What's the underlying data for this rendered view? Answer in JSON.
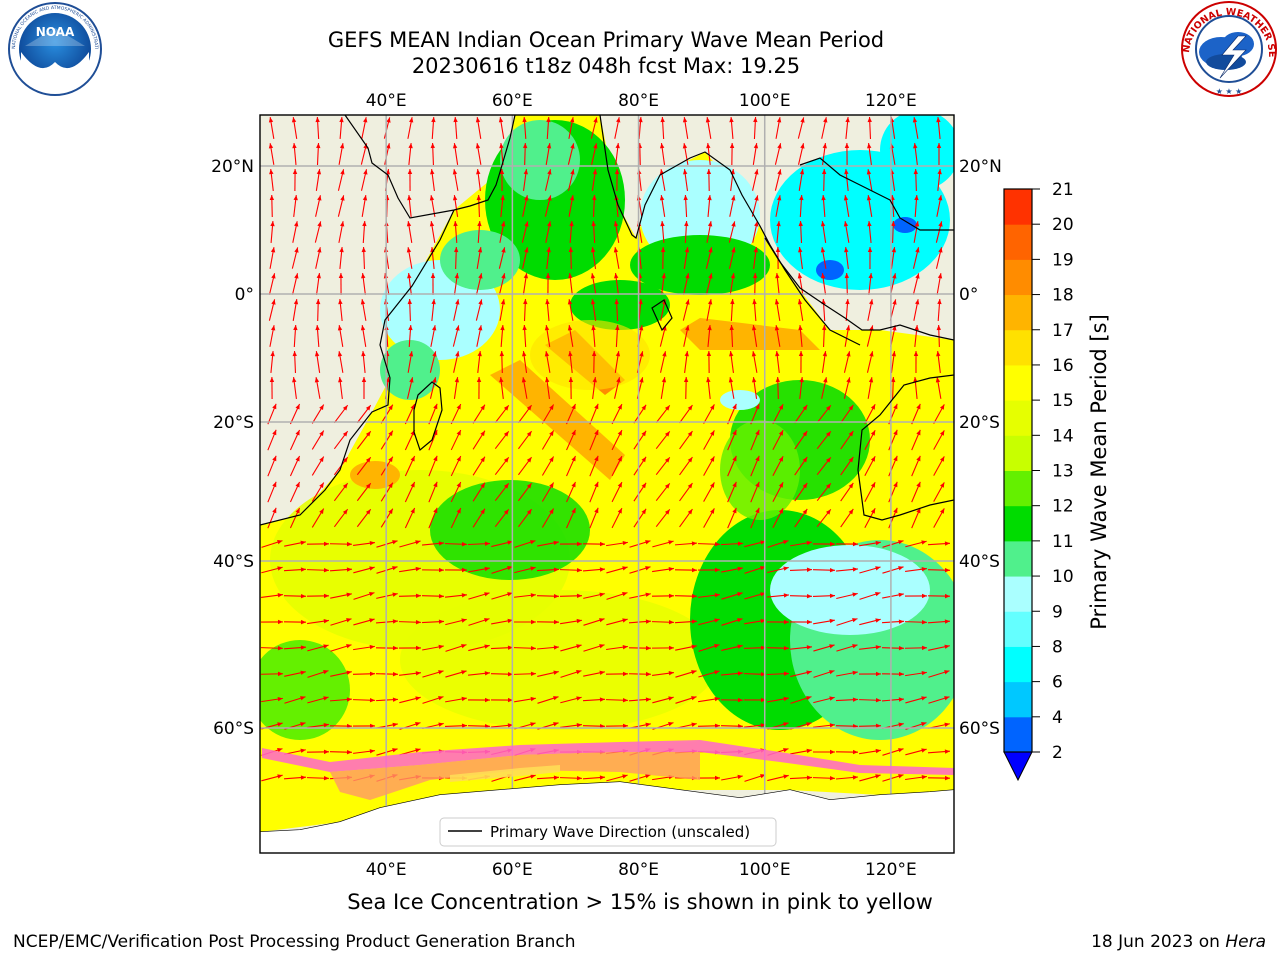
{
  "header": {
    "title_line1": "GEFS MEAN Indian Ocean Primary Wave Mean Period",
    "title_line2": "20230616 t18z 048h fcst   Max: 19.25"
  },
  "logos": {
    "left": "NOAA",
    "left_ring_text": "NATIONAL OCEANIC AND ATMOSPHERIC ADMINISTRATION · U.S. DEPARTMENT OF COMMERCE",
    "right_ring_text": "NATIONAL WEATHER SERVICE"
  },
  "map": {
    "lon_ticks": [
      "40°E",
      "60°E",
      "80°E",
      "100°E",
      "120°E"
    ],
    "lat_ticks": [
      "20°N",
      "0°",
      "20°S",
      "40°S",
      "60°S"
    ],
    "extent": {
      "lon_min": 20,
      "lon_max": 130,
      "lat_min": -72,
      "lat_max": 28
    },
    "legend_label": "Primary Wave Direction (unscaled)",
    "arrow_color": "#ff0000"
  },
  "colorbar": {
    "label": "Primary Wave Mean Period [s]",
    "ticks": [
      "2",
      "4",
      "6",
      "8",
      "9",
      "10",
      "11",
      "12",
      "13",
      "14",
      "15",
      "16",
      "17",
      "18",
      "19",
      "20",
      "21"
    ],
    "colors": [
      "#0064ff",
      "#00c8ff",
      "#00ffff",
      "#64ffff",
      "#aaffff",
      "#50f08c",
      "#00dc00",
      "#64f000",
      "#c8ff00",
      "#e6ff00",
      "#ffff00",
      "#ffe100",
      "#ffb400",
      "#ff8c00",
      "#ff6400",
      "#ff3200"
    ],
    "extend_color": "#0000ff"
  },
  "caption": "Sea Ice Concentration > 15% is shown in pink to yellow",
  "footer": {
    "left": "NCEP/EMC/Verification Post Processing Product Generation Branch",
    "right_date": "18 Jun 2023 on ",
    "right_host": "Hera"
  },
  "chart_data": {
    "type": "heatmap",
    "title": "GEFS MEAN Indian Ocean Primary Wave Mean Period",
    "subtitle": "20230616 t18z 048h fcst   Max: 19.25",
    "variable": "Primary Wave Mean Period [s]",
    "max": 19.25,
    "levels": [
      2,
      4,
      6,
      8,
      9,
      10,
      11,
      12,
      13,
      14,
      15,
      16,
      17,
      18,
      19,
      20,
      21
    ],
    "x_range_deg_e": [
      20,
      130
    ],
    "y_range_deg": [
      -72,
      28
    ],
    "grid": true,
    "legend_placement": "bottom-center"
  }
}
